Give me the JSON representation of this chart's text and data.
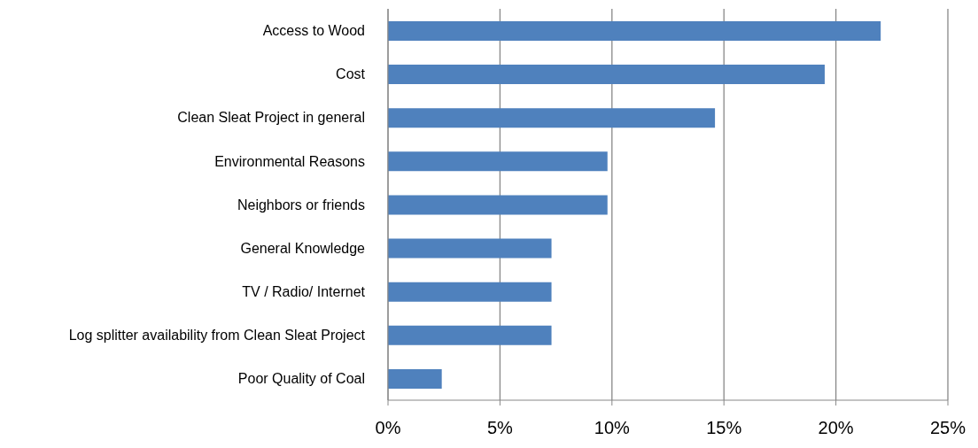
{
  "chart_data": {
    "type": "bar",
    "orientation": "horizontal",
    "categories": [
      "Access to Wood",
      "Cost",
      "Clean Sleat Project in general",
      "Environmental Reasons",
      "Neighbors or friends",
      "General Knowledge",
      "TV / Radio/  Internet",
      "Log splitter availability from Clean Sleat Project",
      "Poor Quality of Coal"
    ],
    "values": [
      22.0,
      19.5,
      14.6,
      9.8,
      9.8,
      7.3,
      7.3,
      7.3,
      2.4
    ],
    "color": "#4f81bd",
    "xlim": [
      0,
      25
    ],
    "xticks": [
      {
        "value": 0,
        "label": "0%"
      },
      {
        "value": 5,
        "label": "5%"
      },
      {
        "value": 10,
        "label": "10%"
      },
      {
        "value": 15,
        "label": "15%"
      },
      {
        "value": 20,
        "label": "20%"
      },
      {
        "value": 25,
        "label": "25%"
      }
    ],
    "grid": "x"
  }
}
